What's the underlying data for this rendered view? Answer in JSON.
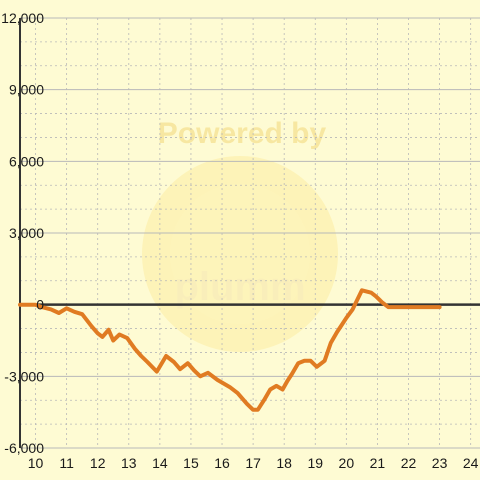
{
  "watermark": {
    "line1": "Powered by",
    "line2": "plumm"
  },
  "chart_data": {
    "type": "line",
    "title": "",
    "xlabel": "",
    "ylabel": "",
    "xlim": [
      9.5,
      24.3
    ],
    "ylim": [
      -6000,
      12000
    ],
    "x_ticks": [
      10,
      11,
      12,
      13,
      14,
      15,
      16,
      17,
      18,
      19,
      20,
      21,
      22,
      23,
      24
    ],
    "y_ticks": [
      -6000,
      -3000,
      0,
      3000,
      6000,
      9000,
      12000
    ],
    "y_tick_labels": [
      "-6,000",
      "-3,000",
      "0",
      "3,000",
      "6,000",
      "9,000",
      "12,000"
    ],
    "grid": true,
    "colors": {
      "line": "#e07b22",
      "zero_line": "#333333",
      "grid": "#b8b8b8",
      "background": "#fefbd3"
    },
    "series": [
      {
        "x": [
          9.5,
          10.0,
          10.2,
          10.5,
          10.75,
          11.0,
          11.25,
          11.5,
          11.8,
          12.0,
          12.15,
          12.35,
          12.5,
          12.7,
          12.95,
          13.2,
          13.4,
          13.6,
          13.9,
          14.2,
          14.45,
          14.65,
          14.9,
          15.1,
          15.3,
          15.55,
          15.85,
          16.05,
          16.25,
          16.5,
          16.8,
          17.0,
          17.15,
          17.35,
          17.55,
          17.75,
          17.95,
          18.1,
          18.25,
          18.45,
          18.65,
          18.85,
          19.05,
          19.3,
          19.5,
          19.7,
          19.85,
          20.0,
          20.2,
          20.5,
          20.8,
          20.95,
          21.15,
          21.35,
          21.55,
          21.8,
          22.1,
          22.4,
          22.7,
          23.0
        ],
        "y": [
          0,
          0,
          -100,
          -200,
          -350,
          -150,
          -300,
          -400,
          -900,
          -1200,
          -1350,
          -1050,
          -1500,
          -1250,
          -1400,
          -1850,
          -2150,
          -2400,
          -2800,
          -2150,
          -2400,
          -2700,
          -2450,
          -2750,
          -3000,
          -2850,
          -3150,
          -3300,
          -3450,
          -3700,
          -4150,
          -4400,
          -4400,
          -4000,
          -3550,
          -3400,
          -3550,
          -3200,
          -2900,
          -2450,
          -2350,
          -2350,
          -2600,
          -2350,
          -1600,
          -1150,
          -850,
          -550,
          -200,
          600,
          500,
          350,
          100,
          -100,
          -100,
          -100,
          -100,
          -100,
          -100,
          -100
        ]
      }
    ]
  }
}
